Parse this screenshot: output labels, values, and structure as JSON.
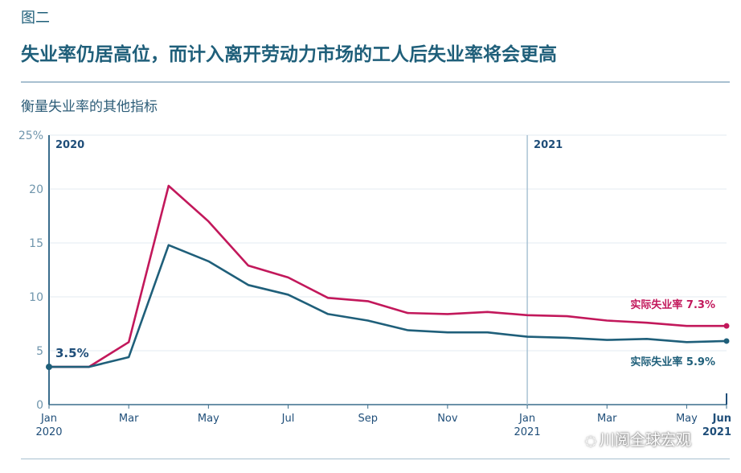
{
  "figure": {
    "label": "图二",
    "headline": "失业率仍居高位，而计入离开劳动力市场的工人后失业率将会更高",
    "subtitle": "衡量失业率的其他指标"
  },
  "watermark": {
    "text": "川阅全球宏观",
    "icon": "wechat-icon"
  },
  "chart_data": {
    "type": "line",
    "x": [
      "Jan 2020",
      "Feb 2020",
      "Mar 2020",
      "Apr 2020",
      "May 2020",
      "Jun 2020",
      "Jul 2020",
      "Aug 2020",
      "Sep 2020",
      "Oct 2020",
      "Nov 2020",
      "Dec 2020",
      "Jan 2021",
      "Feb 2021",
      "Mar 2021",
      "Apr 2021",
      "May 2021",
      "Jun 2021"
    ],
    "x_tick_labels": [
      {
        "index": 0,
        "month": "Jan",
        "year": "2020"
      },
      {
        "index": 2,
        "month": "Mar",
        "year": ""
      },
      {
        "index": 4,
        "month": "May",
        "year": ""
      },
      {
        "index": 6,
        "month": "Jul",
        "year": ""
      },
      {
        "index": 8,
        "month": "Sep",
        "year": ""
      },
      {
        "index": 10,
        "month": "Nov",
        "year": ""
      },
      {
        "index": 12,
        "month": "Jan",
        "year": "2021"
      },
      {
        "index": 14,
        "month": "Mar",
        "year": ""
      },
      {
        "index": 16,
        "month": "May",
        "year": ""
      },
      {
        "index": 17,
        "month": "Jun",
        "year": "2021"
      }
    ],
    "y_ticks": [
      "0",
      "5",
      "10",
      "15",
      "20",
      "25%"
    ],
    "ylim": [
      0,
      25
    ],
    "year_markers": [
      {
        "index": 0,
        "label": "2020"
      },
      {
        "index": 12,
        "label": "2021"
      }
    ],
    "series": [
      {
        "color": "#c2185b",
        "values": [
          3.5,
          3.5,
          5.8,
          20.3,
          17.0,
          12.9,
          11.8,
          9.9,
          9.6,
          8.5,
          8.4,
          8.6,
          8.3,
          8.2,
          7.8,
          7.6,
          7.3,
          7.3
        ],
        "end_label": "实际失业率 7.3%"
      },
      {
        "color": "#1f5f7a",
        "values": [
          3.5,
          3.5,
          4.4,
          14.8,
          13.3,
          11.1,
          10.2,
          8.4,
          7.8,
          6.9,
          6.7,
          6.7,
          6.3,
          6.2,
          6.0,
          6.1,
          5.8,
          5.9
        ],
        "end_label": "实际失业率 5.9%"
      }
    ],
    "start_annotation": "3.5%"
  }
}
